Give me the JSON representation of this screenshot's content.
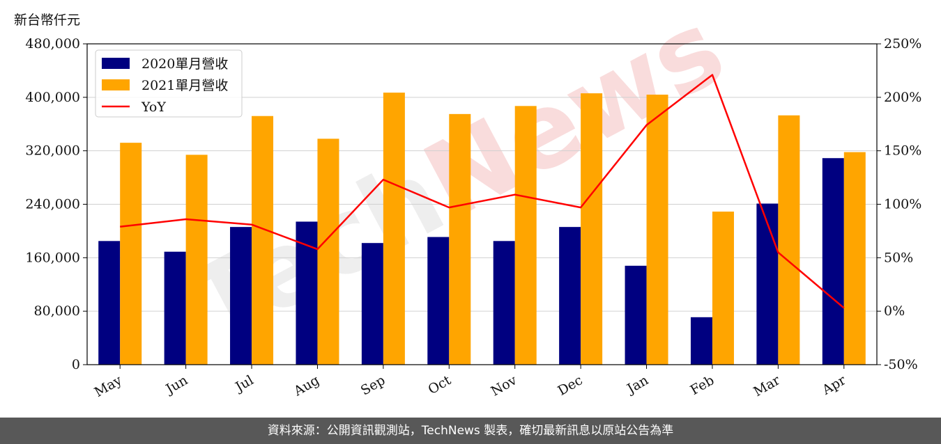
{
  "unit_label": "新台幣仟元",
  "footer_text": "資料來源：公開資訊觀測站，TechNews 製表，確切最新訊息以原站公告為準",
  "watermark_text": "TechNews",
  "chart_data": {
    "type": "bar",
    "categories": [
      "May",
      "Jun",
      "Jul",
      "Aug",
      "Sep",
      "Oct",
      "Nov",
      "Dec",
      "Jan",
      "Feb",
      "Mar",
      "Apr"
    ],
    "series": [
      {
        "name": "2020單月營收",
        "type": "bar",
        "axis": "left",
        "color": "#000080",
        "values": [
          185000,
          169000,
          206000,
          214000,
          182000,
          191000,
          185000,
          206000,
          148000,
          71000,
          241000,
          309000
        ]
      },
      {
        "name": "2021單月營收",
        "type": "bar",
        "axis": "left",
        "color": "#FFA500",
        "values": [
          332000,
          314000,
          372000,
          338000,
          407000,
          375000,
          387000,
          406000,
          404000,
          229000,
          373000,
          318000
        ]
      },
      {
        "name": "YoY",
        "type": "line",
        "axis": "right",
        "color": "#FF0000",
        "values": [
          79,
          86,
          81,
          58,
          123,
          97,
          109,
          97,
          174,
          221,
          55,
          3
        ]
      }
    ],
    "ylim": [
      0,
      480000
    ],
    "yticks": [
      "0",
      "80,000",
      "160,000",
      "240,000",
      "320,000",
      "400,000",
      "480,000"
    ],
    "y2lim": [
      -50,
      250
    ],
    "y2ticks": [
      "-50%",
      "0%",
      "50%",
      "100%",
      "150%",
      "200%",
      "250%"
    ],
    "grid": "horizontal",
    "legend_position": "top-left"
  }
}
